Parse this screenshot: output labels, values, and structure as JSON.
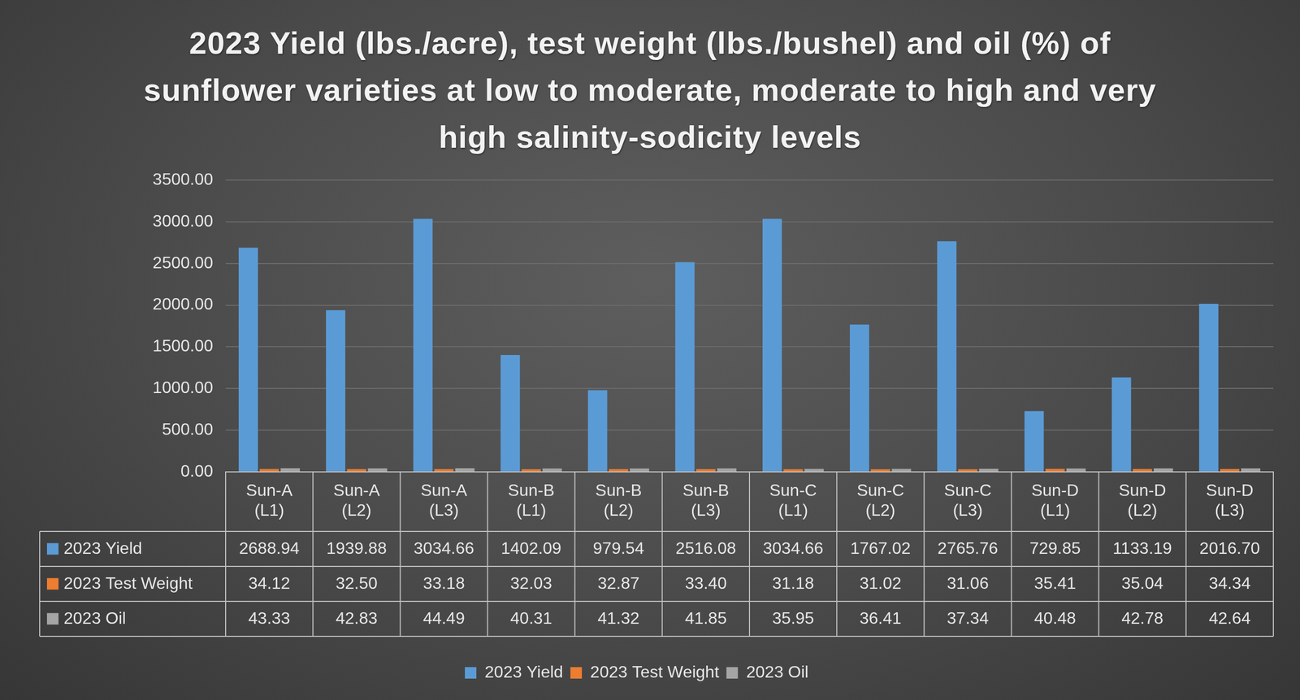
{
  "chart_data": {
    "type": "bar",
    "title": "2023 Yield (lbs./acre), test weight (lbs./bushel) and oil (%) of sunflower varieties at low to moderate, moderate to high and very high salinity-sodicity levels",
    "categories": [
      "Sun-A (L1)",
      "Sun-A (L2)",
      "Sun-A (L3)",
      "Sun-B (L1)",
      "Sun-B (L2)",
      "Sun-B (L3)",
      "Sun-C (L1)",
      "Sun-C (L2)",
      "Sun-C (L3)",
      "Sun-D (L1)",
      "Sun-D (L2)",
      "Sun-D (L3)"
    ],
    "series": [
      {
        "name": "2023 Yield",
        "color": "#5b9bd5",
        "values": [
          2688.94,
          1939.88,
          3034.66,
          1402.09,
          979.54,
          2516.08,
          3034.66,
          1767.02,
          2765.76,
          729.85,
          1133.19,
          2016.7
        ],
        "value_labels": [
          "2688.94",
          "1939.88",
          "3034.66",
          "1402.09",
          "979.54",
          "2516.08",
          "3034.66",
          "1767.02",
          "2765.76",
          "729.85",
          "1133.19",
          "2016.70"
        ]
      },
      {
        "name": "2023 Test Weight",
        "color": "#ed7d31",
        "values": [
          34.12,
          32.5,
          33.18,
          32.03,
          32.87,
          33.4,
          31.18,
          31.02,
          31.06,
          35.41,
          35.04,
          34.34
        ],
        "value_labels": [
          "34.12",
          "32.50",
          "33.18",
          "32.03",
          "32.87",
          "33.40",
          "31.18",
          "31.02",
          "31.06",
          "35.41",
          "35.04",
          "34.34"
        ]
      },
      {
        "name": "2023 Oil",
        "color": "#a5a5a5",
        "values": [
          43.33,
          42.83,
          44.49,
          40.31,
          41.32,
          41.85,
          35.95,
          36.41,
          37.34,
          40.48,
          42.78,
          42.64
        ],
        "value_labels": [
          "43.33",
          "42.83",
          "44.49",
          "40.31",
          "41.32",
          "41.85",
          "35.95",
          "36.41",
          "37.34",
          "40.48",
          "42.78",
          "42.64"
        ]
      }
    ],
    "ylim": [
      0,
      3500
    ],
    "yticks": [
      {
        "value": 0,
        "label": "0.00"
      },
      {
        "value": 500,
        "label": "500.00"
      },
      {
        "value": 1000,
        "label": "1000.00"
      },
      {
        "value": 1500,
        "label": "1500.00"
      },
      {
        "value": 2000,
        "label": "2000.00"
      },
      {
        "value": 2500,
        "label": "2500.00"
      },
      {
        "value": 3000,
        "label": "3000.00"
      },
      {
        "value": 3500,
        "label": "3500.00"
      }
    ],
    "grid": true,
    "legend": "bottom"
  }
}
